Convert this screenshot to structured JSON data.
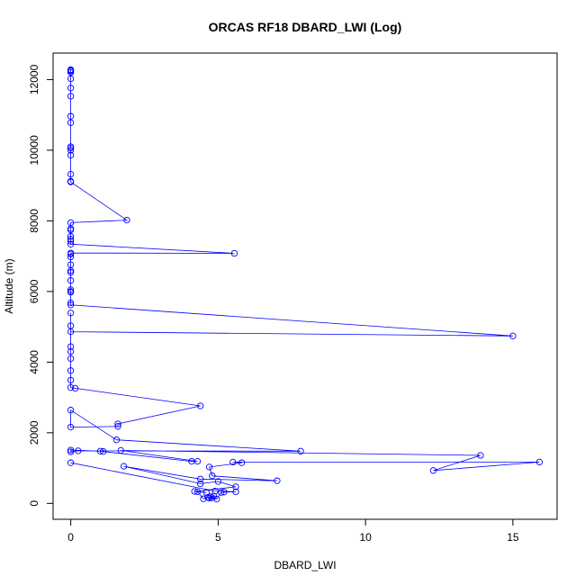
{
  "chart_data": {
    "type": "line",
    "title": "ORCAS RF18 DBARD_LWI (Log)",
    "xlabel": "DBARD_LWI",
    "ylabel": "Altitude (m)",
    "xlim": [
      -0.6,
      16.5
    ],
    "ylim": [
      -450,
      12750
    ],
    "xticks": [
      0,
      5,
      10,
      15
    ],
    "yticks": [
      0,
      2000,
      4000,
      6000,
      8000,
      10000,
      12000
    ],
    "grid": false,
    "legend": "none",
    "line_color": "#0000ff",
    "marker": "open-circle",
    "series": [
      {
        "points": [
          [
            0,
            12280
          ],
          [
            0,
            12260
          ],
          [
            0,
            12240
          ],
          [
            0,
            12200
          ],
          [
            0,
            12020
          ],
          [
            0,
            11760
          ],
          [
            0,
            11530
          ],
          [
            0,
            10960
          ],
          [
            0,
            10780
          ],
          [
            0,
            10100
          ],
          [
            0,
            10060
          ],
          [
            0,
            10000
          ],
          [
            0,
            9860
          ],
          [
            0,
            9320
          ],
          [
            0,
            9120
          ],
          [
            0,
            9100
          ],
          [
            1.9,
            8020
          ],
          [
            0,
            7950
          ],
          [
            0,
            7780
          ],
          [
            0,
            7740
          ],
          [
            0,
            7560
          ],
          [
            0,
            7480
          ],
          [
            0,
            7420
          ],
          [
            0,
            7340
          ],
          [
            5.55,
            7080
          ],
          [
            0,
            7090
          ],
          [
            0,
            7060
          ],
          [
            0,
            6980
          ],
          [
            0,
            6760
          ],
          [
            0,
            6590
          ],
          [
            0,
            6540
          ],
          [
            0,
            6310
          ],
          [
            0,
            6050
          ],
          [
            0,
            6000
          ],
          [
            0,
            5980
          ],
          [
            0,
            5680
          ],
          [
            0,
            5620
          ],
          [
            15.0,
            4740
          ],
          [
            0,
            4860
          ],
          [
            0,
            5030
          ],
          [
            0,
            5390
          ],
          [
            0,
            4440
          ],
          [
            0,
            4300
          ],
          [
            0,
            4100
          ],
          [
            0,
            3760
          ],
          [
            0,
            3490
          ],
          [
            0,
            3280
          ],
          [
            0.15,
            3260
          ],
          [
            4.4,
            2760
          ],
          [
            1.6,
            2250
          ],
          [
            1.6,
            2180
          ],
          [
            0,
            2160
          ],
          [
            0,
            2640
          ],
          [
            1.55,
            1800
          ],
          [
            7.8,
            1480
          ],
          [
            0.25,
            1490
          ],
          [
            0,
            1460
          ],
          [
            0,
            1510
          ],
          [
            1.0,
            1480
          ],
          [
            1.1,
            1470
          ],
          [
            4.1,
            1190
          ],
          [
            4.3,
            1190
          ],
          [
            1.7,
            1500
          ],
          [
            13.9,
            1360
          ],
          [
            12.3,
            930
          ],
          [
            15.9,
            1170
          ],
          [
            5.5,
            1170
          ],
          [
            5.8,
            1150
          ],
          [
            4.7,
            1030
          ],
          [
            4.8,
            780
          ],
          [
            7.0,
            640
          ],
          [
            4.4,
            690
          ],
          [
            1.8,
            1050
          ],
          [
            4.4,
            560
          ],
          [
            5.0,
            620
          ],
          [
            5.6,
            470
          ],
          [
            4.2,
            340
          ],
          [
            4.6,
            310
          ],
          [
            4.3,
            330
          ],
          [
            4.5,
            130
          ],
          [
            4.65,
            170
          ],
          [
            4.75,
            190
          ],
          [
            4.85,
            210
          ],
          [
            4.8,
            160
          ],
          [
            4.7,
            150
          ],
          [
            4.95,
            120
          ],
          [
            5.1,
            310
          ],
          [
            5.2,
            320
          ],
          [
            5.6,
            330
          ],
          [
            4.9,
            350
          ],
          [
            0,
            1150
          ]
        ]
      }
    ]
  }
}
